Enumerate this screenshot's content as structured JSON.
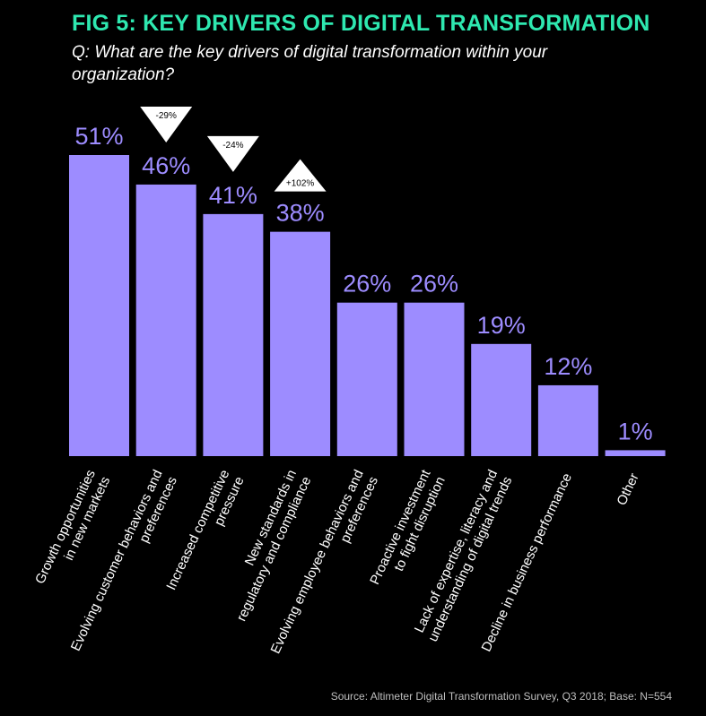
{
  "header": {
    "title": "FIG 5: KEY DRIVERS OF DIGITAL TRANSFORMATION",
    "question": "Q: What are the key drivers of digital transformation within your organization?"
  },
  "footer": {
    "source": "Source: Altimeter Digital Transformation Survey, Q3 2018; Base: N=554"
  },
  "chart_data": {
    "type": "bar",
    "categories": [
      [
        "Growth opportunities",
        "in new markets"
      ],
      [
        "Evolving customer behaviors and",
        "preferences"
      ],
      [
        "Increased competitive",
        "pressure"
      ],
      [
        "New standards in",
        "regulatory and compliance"
      ],
      [
        "Evolving employee behaviors and",
        "preferences"
      ],
      [
        "Proactive investment",
        "to fight disruption"
      ],
      [
        "Lack of expertise, literacy and",
        "understanding of digital trends"
      ],
      [
        "Decline in business performance"
      ],
      [
        "Other"
      ]
    ],
    "values": [
      51,
      46,
      41,
      38,
      26,
      26,
      19,
      12,
      1
    ],
    "value_labels": [
      "51%",
      "46%",
      "41%",
      "38%",
      "26%",
      "26%",
      "19%",
      "12%",
      "1%"
    ],
    "changes": [
      {
        "index": 1,
        "label": "-29%",
        "direction": "down"
      },
      {
        "index": 2,
        "label": "-24%",
        "direction": "down"
      },
      {
        "index": 3,
        "label": "+102%",
        "direction": "up"
      }
    ],
    "ylim": [
      0,
      51
    ],
    "grid": false,
    "colors": {
      "bar": "#9d8cff",
      "value_label": "#9d8cff",
      "title": "#2ee8b0",
      "badge": "#ffffff",
      "background": "#000000"
    }
  }
}
